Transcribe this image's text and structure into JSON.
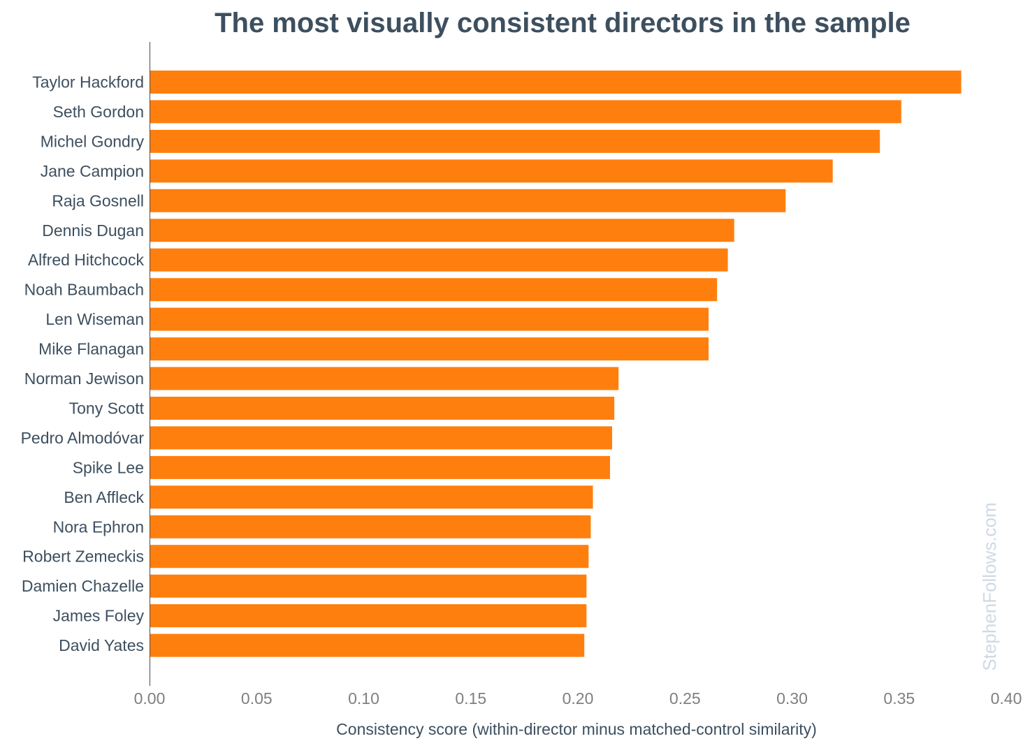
{
  "chart_data": {
    "type": "bar",
    "orientation": "horizontal",
    "title": "The most visually consistent directors in the sample",
    "xlabel": "Consistency score (within-director minus matched-control similarity)",
    "ylabel": "",
    "xlim": [
      0,
      0.4
    ],
    "xticks": [
      "0.00",
      "0.05",
      "0.10",
      "0.15",
      "0.20",
      "0.25",
      "0.30",
      "0.35",
      "0.40"
    ],
    "grid": false,
    "bar_color": "#ff7f0e",
    "categories": [
      "Taylor Hackford",
      "Seth Gordon",
      "Michel Gondry",
      "Jane Campion",
      "Raja Gosnell",
      "Dennis Dugan",
      "Alfred Hitchcock",
      "Noah Baumbach",
      "Len Wiseman",
      "Mike Flanagan",
      "Norman Jewison",
      "Tony Scott",
      "Pedro Almodóvar",
      "Spike Lee",
      "Ben Affleck",
      "Nora Ephron",
      "Robert Zemeckis",
      "Damien Chazelle",
      "James Foley",
      "David Yates"
    ],
    "values": [
      0.379,
      0.351,
      0.341,
      0.319,
      0.297,
      0.273,
      0.27,
      0.265,
      0.261,
      0.261,
      0.219,
      0.217,
      0.216,
      0.215,
      0.207,
      0.206,
      0.205,
      0.204,
      0.204,
      0.203
    ],
    "watermark": "StephenFollows.com"
  }
}
